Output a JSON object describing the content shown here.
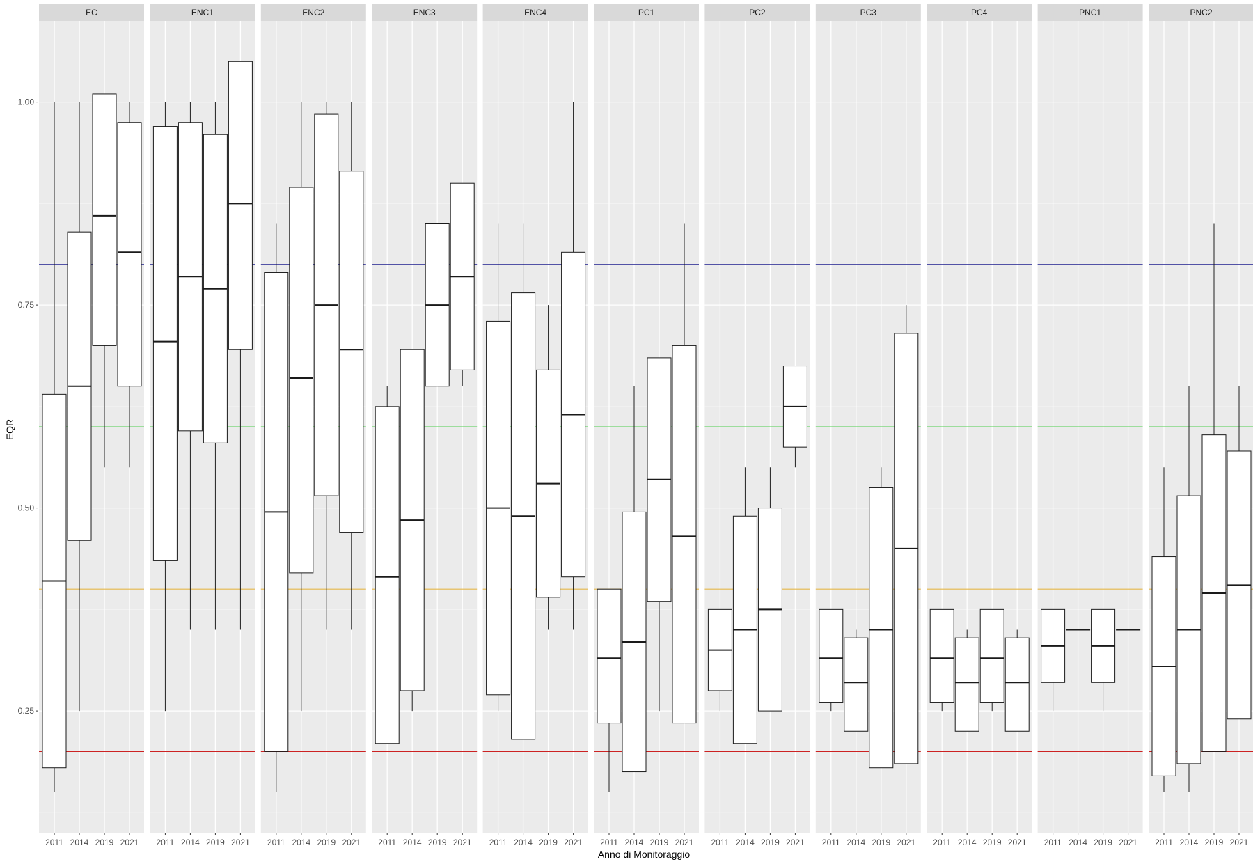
{
  "chart_data": {
    "type": "boxplot",
    "xlabel": "Anno di Monitoraggio",
    "ylabel": "EQR",
    "ylim": [
      0.1,
      1.1
    ],
    "y_ticks": [
      {
        "value": 0.25,
        "label": "0.25"
      },
      {
        "value": 0.5,
        "label": "0.50"
      },
      {
        "value": 0.75,
        "label": "0.75"
      },
      {
        "value": 1.0,
        "label": "1.00"
      }
    ],
    "categories": [
      "2011",
      "2014",
      "2019",
      "2021"
    ],
    "grid": true,
    "reference_lines": [
      {
        "value": 0.8,
        "color": "#1f1f8f"
      },
      {
        "value": 0.6,
        "color": "#4ccf4c"
      },
      {
        "value": 0.4,
        "color": "#e6b84a"
      },
      {
        "value": 0.2,
        "color": "#cc2222"
      }
    ],
    "panels": [
      {
        "name": "EC",
        "boxes": [
          {
            "year": "2011",
            "min": 0.15,
            "q1": 0.18,
            "median": 0.41,
            "q3": 0.64,
            "max": 1.0
          },
          {
            "year": "2014",
            "min": 0.25,
            "q1": 0.46,
            "median": 0.65,
            "q3": 0.84,
            "max": 1.0
          },
          {
            "year": "2019",
            "min": 0.55,
            "q1": 0.7,
            "median": 0.86,
            "q3": 1.01,
            "max": 1.01
          },
          {
            "year": "2021",
            "min": 0.55,
            "q1": 0.65,
            "median": 0.815,
            "q3": 0.975,
            "max": 1.0
          }
        ]
      },
      {
        "name": "ENC1",
        "boxes": [
          {
            "year": "2011",
            "min": 0.25,
            "q1": 0.435,
            "median": 0.705,
            "q3": 0.97,
            "max": 1.0
          },
          {
            "year": "2014",
            "min": 0.35,
            "q1": 0.595,
            "median": 0.785,
            "q3": 0.975,
            "max": 1.0
          },
          {
            "year": "2019",
            "min": 0.35,
            "q1": 0.58,
            "median": 0.77,
            "q3": 0.96,
            "max": 1.0
          },
          {
            "year": "2021",
            "min": 0.35,
            "q1": 0.695,
            "median": 0.875,
            "q3": 1.05,
            "max": 1.05
          }
        ]
      },
      {
        "name": "ENC2",
        "boxes": [
          {
            "year": "2011",
            "min": 0.15,
            "q1": 0.2,
            "median": 0.495,
            "q3": 0.79,
            "max": 0.85
          },
          {
            "year": "2014",
            "min": 0.25,
            "q1": 0.42,
            "median": 0.66,
            "q3": 0.895,
            "max": 1.0
          },
          {
            "year": "2019",
            "min": 0.35,
            "q1": 0.515,
            "median": 0.75,
            "q3": 0.985,
            "max": 1.0
          },
          {
            "year": "2021",
            "min": 0.35,
            "q1": 0.47,
            "median": 0.695,
            "q3": 0.915,
            "max": 1.0
          }
        ]
      },
      {
        "name": "ENC3",
        "boxes": [
          {
            "year": "2011",
            "min": 0.21,
            "q1": 0.21,
            "median": 0.415,
            "q3": 0.625,
            "max": 0.65
          },
          {
            "year": "2014",
            "min": 0.25,
            "q1": 0.275,
            "median": 0.485,
            "q3": 0.695,
            "max": 0.695
          },
          {
            "year": "2019",
            "min": 0.65,
            "q1": 0.65,
            "median": 0.75,
            "q3": 0.85,
            "max": 0.85
          },
          {
            "year": "2021",
            "min": 0.65,
            "q1": 0.67,
            "median": 0.785,
            "q3": 0.9,
            "max": 0.9
          }
        ]
      },
      {
        "name": "ENC4",
        "boxes": [
          {
            "year": "2011",
            "min": 0.25,
            "q1": 0.27,
            "median": 0.5,
            "q3": 0.73,
            "max": 0.85
          },
          {
            "year": "2014",
            "min": 0.215,
            "q1": 0.215,
            "median": 0.49,
            "q3": 0.765,
            "max": 0.85
          },
          {
            "year": "2019",
            "min": 0.35,
            "q1": 0.39,
            "median": 0.53,
            "q3": 0.67,
            "max": 0.75
          },
          {
            "year": "2021",
            "min": 0.35,
            "q1": 0.415,
            "median": 0.615,
            "q3": 0.815,
            "max": 1.0
          }
        ]
      },
      {
        "name": "PC1",
        "boxes": [
          {
            "year": "2011",
            "min": 0.15,
            "q1": 0.235,
            "median": 0.315,
            "q3": 0.4,
            "max": 0.4
          },
          {
            "year": "2014",
            "min": 0.175,
            "q1": 0.175,
            "median": 0.335,
            "q3": 0.495,
            "max": 0.65
          },
          {
            "year": "2019",
            "min": 0.25,
            "q1": 0.385,
            "median": 0.535,
            "q3": 0.685,
            "max": 0.685
          },
          {
            "year": "2021",
            "min": 0.235,
            "q1": 0.235,
            "median": 0.465,
            "q3": 0.7,
            "max": 0.85
          }
        ]
      },
      {
        "name": "PC2",
        "boxes": [
          {
            "year": "2011",
            "min": 0.25,
            "q1": 0.275,
            "median": 0.325,
            "q3": 0.375,
            "max": 0.375
          },
          {
            "year": "2014",
            "min": 0.21,
            "q1": 0.21,
            "median": 0.35,
            "q3": 0.49,
            "max": 0.55
          },
          {
            "year": "2019",
            "min": 0.25,
            "q1": 0.25,
            "median": 0.375,
            "q3": 0.5,
            "max": 0.55
          },
          {
            "year": "2021",
            "min": 0.55,
            "q1": 0.575,
            "median": 0.625,
            "q3": 0.675,
            "max": 0.675
          }
        ]
      },
      {
        "name": "PC3",
        "boxes": [
          {
            "year": "2011",
            "min": 0.25,
            "q1": 0.26,
            "median": 0.315,
            "q3": 0.375,
            "max": 0.375
          },
          {
            "year": "2014",
            "min": 0.225,
            "q1": 0.225,
            "median": 0.285,
            "q3": 0.34,
            "max": 0.35
          },
          {
            "year": "2019",
            "min": 0.18,
            "q1": 0.18,
            "median": 0.35,
            "q3": 0.525,
            "max": 0.55
          },
          {
            "year": "2021",
            "min": 0.185,
            "q1": 0.185,
            "median": 0.45,
            "q3": 0.715,
            "max": 0.75
          }
        ]
      },
      {
        "name": "PC4",
        "boxes": [
          {
            "year": "2011",
            "min": 0.25,
            "q1": 0.26,
            "median": 0.315,
            "q3": 0.375,
            "max": 0.375
          },
          {
            "year": "2014",
            "min": 0.225,
            "q1": 0.225,
            "median": 0.285,
            "q3": 0.34,
            "max": 0.35
          },
          {
            "year": "2019",
            "min": 0.25,
            "q1": 0.26,
            "median": 0.315,
            "q3": 0.375,
            "max": 0.375
          },
          {
            "year": "2021",
            "min": 0.225,
            "q1": 0.225,
            "median": 0.285,
            "q3": 0.34,
            "max": 0.35
          }
        ]
      },
      {
        "name": "PNC1",
        "boxes": [
          {
            "year": "2011",
            "min": 0.25,
            "q1": 0.285,
            "median": 0.33,
            "q3": 0.375,
            "max": 0.375
          },
          {
            "year": "2014",
            "min": 0.35,
            "q1": 0.35,
            "median": 0.35,
            "q3": 0.35,
            "max": 0.35
          },
          {
            "year": "2019",
            "min": 0.25,
            "q1": 0.285,
            "median": 0.33,
            "q3": 0.375,
            "max": 0.375
          },
          {
            "year": "2021",
            "min": 0.35,
            "q1": 0.35,
            "median": 0.35,
            "q3": 0.35,
            "max": 0.35
          }
        ]
      },
      {
        "name": "PNC2",
        "boxes": [
          {
            "year": "2011",
            "min": 0.15,
            "q1": 0.17,
            "median": 0.305,
            "q3": 0.44,
            "max": 0.55
          },
          {
            "year": "2014",
            "min": 0.15,
            "q1": 0.185,
            "median": 0.35,
            "q3": 0.515,
            "max": 0.65
          },
          {
            "year": "2019",
            "min": 0.2,
            "q1": 0.2,
            "median": 0.395,
            "q3": 0.59,
            "max": 0.85
          },
          {
            "year": "2021",
            "min": 0.24,
            "q1": 0.24,
            "median": 0.405,
            "q3": 0.57,
            "max": 0.65
          }
        ]
      }
    ]
  }
}
